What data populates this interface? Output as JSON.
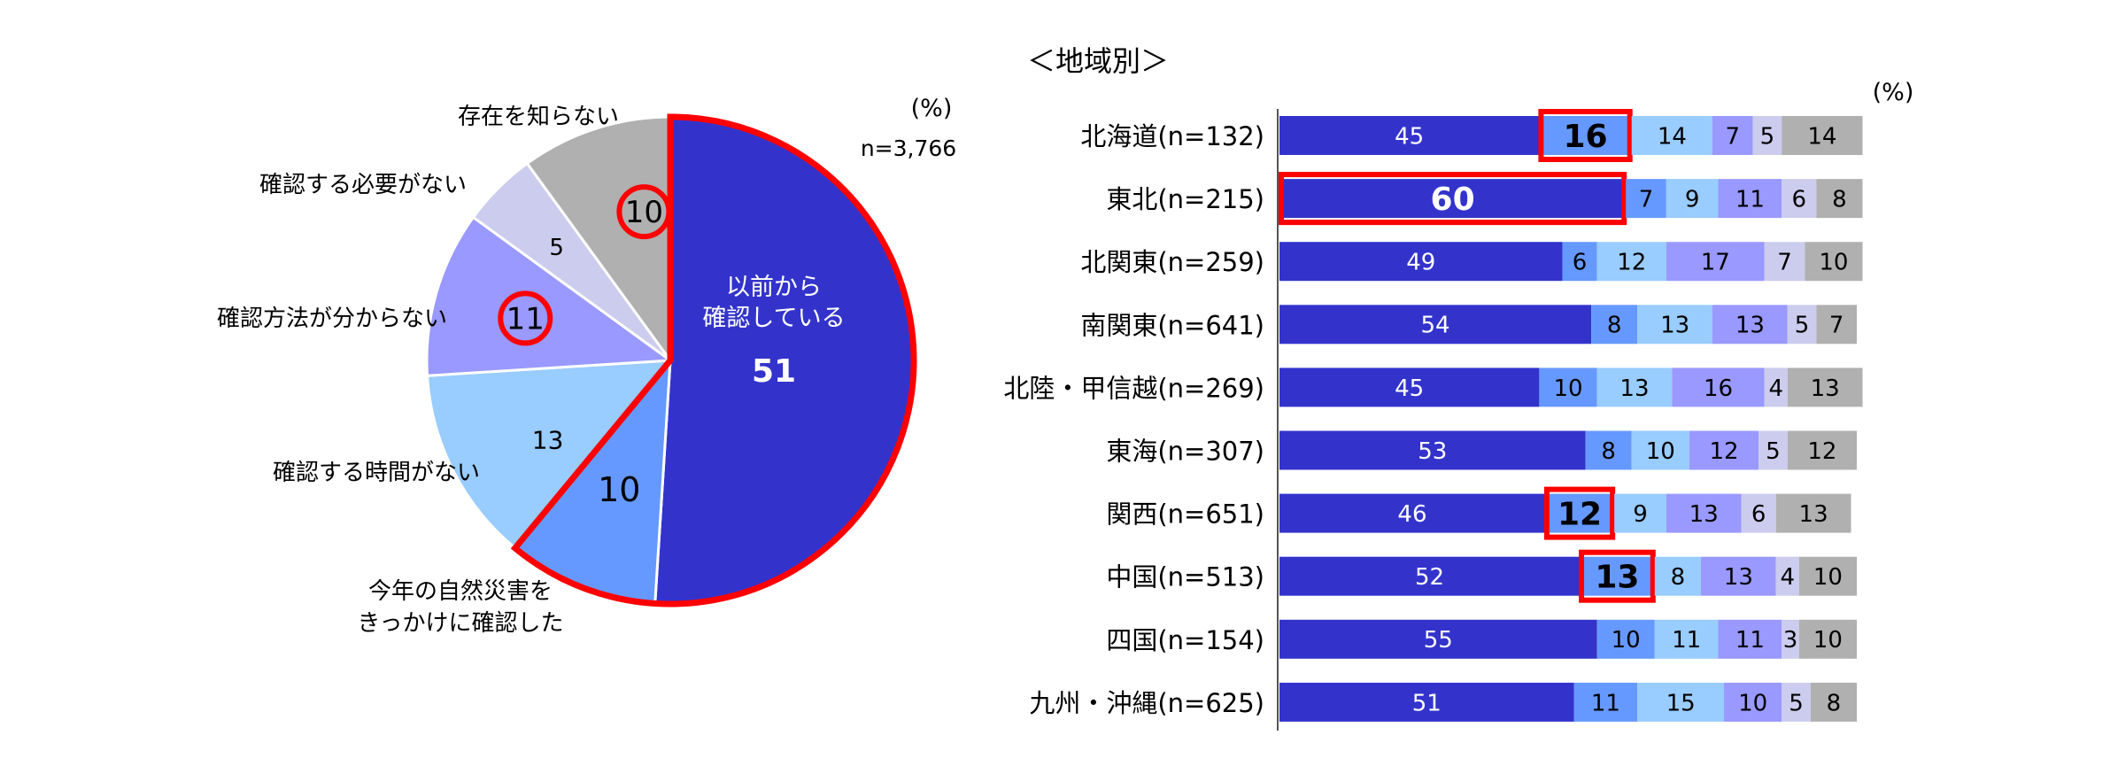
{
  "colors": {
    "before": "#3333CC",
    "disaster": "#6699FF",
    "no_time": "#99CCFF",
    "unknown_method": "#9999FF",
    "not_needed": "#CCCCEE",
    "not_aware": "#B0B0B0",
    "highlight": "#FF0000"
  },
  "chart_data": [
    {
      "type": "pie",
      "unit_label": "(%)",
      "sample_label": "n=3,766",
      "slices": [
        {
          "label": "以前から\n確認している",
          "value": 51,
          "color_key": "before",
          "highlight_border": true
        },
        {
          "label": "今年の自然災害を\nきっかけに確認した",
          "value": 10,
          "color_key": "disaster",
          "highlight_border": true
        },
        {
          "label": "確認する時間がない",
          "value": 13,
          "color_key": "no_time"
        },
        {
          "label": "確認方法が分からない",
          "value": 11,
          "color_key": "unknown_method",
          "circled": true
        },
        {
          "label": "確認する必要がない",
          "value": 5,
          "color_key": "not_needed"
        },
        {
          "label": "存在を知らない",
          "value": 10,
          "color_key": "not_aware",
          "circled": true
        }
      ]
    },
    {
      "type": "bar",
      "orientation": "horizontal",
      "stacked": true,
      "title": "＜地域別＞",
      "unit_label": "(%)",
      "xlim": [
        0,
        100
      ],
      "series_color_keys": [
        "before",
        "disaster",
        "no_time",
        "unknown_method",
        "not_needed",
        "not_aware"
      ],
      "categories": [
        {
          "label": "北海道(n=132)",
          "values": [
            45,
            16,
            14,
            7,
            5,
            14
          ],
          "highlight_index": 1
        },
        {
          "label": "東北(n=215)",
          "values": [
            60,
            7,
            9,
            11,
            6,
            8
          ],
          "highlight_index": 0
        },
        {
          "label": "北関東(n=259)",
          "values": [
            49,
            6,
            12,
            17,
            7,
            10
          ]
        },
        {
          "label": "南関東(n=641)",
          "values": [
            54,
            8,
            13,
            13,
            5,
            7
          ]
        },
        {
          "label": "北陸・甲信越(n=269)",
          "values": [
            45,
            10,
            13,
            16,
            4,
            13
          ]
        },
        {
          "label": "東海(n=307)",
          "values": [
            53,
            8,
            10,
            12,
            5,
            12
          ]
        },
        {
          "label": "関西(n=651)",
          "values": [
            46,
            12,
            9,
            13,
            6,
            13
          ],
          "highlight_index": 1
        },
        {
          "label": "中国(n=513)",
          "values": [
            52,
            13,
            8,
            13,
            4,
            10
          ],
          "highlight_index": 1
        },
        {
          "label": "四国(n=154)",
          "values": [
            55,
            10,
            11,
            11,
            3,
            10
          ]
        },
        {
          "label": "九州・沖縄(n=625)",
          "values": [
            51,
            11,
            15,
            10,
            5,
            8
          ]
        }
      ]
    }
  ]
}
